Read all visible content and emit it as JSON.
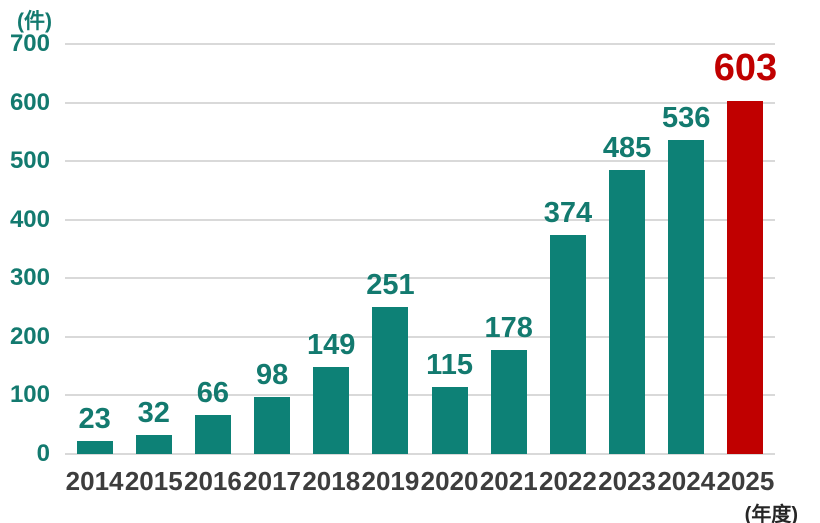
{
  "chart_data": {
    "type": "bar",
    "title": "",
    "unit_label": "(件)",
    "x_axis_suffix_label": "(年度)",
    "categories": [
      "2014",
      "2015",
      "2016",
      "2017",
      "2018",
      "2019",
      "2020",
      "2021",
      "2022",
      "2023",
      "2024",
      "2025"
    ],
    "values": [
      23,
      32,
      66,
      98,
      149,
      251,
      115,
      178,
      374,
      485,
      536,
      603
    ],
    "highlight_index": 11,
    "highlighted_category": "2025",
    "ylim": [
      0,
      700
    ],
    "y_ticks": [
      0,
      100,
      200,
      300,
      400,
      500,
      600,
      700
    ],
    "grid": true,
    "legend": "none",
    "colors": {
      "bar": "#0d8176",
      "bar_highlight": "#c00000",
      "value_label": "#137a6f",
      "value_label_highlight": "#c00000",
      "axis_tick": "#137a6f",
      "category_label": "#3d3d3d",
      "gridline": "#d9d9d9",
      "background": "#ffffff"
    }
  }
}
